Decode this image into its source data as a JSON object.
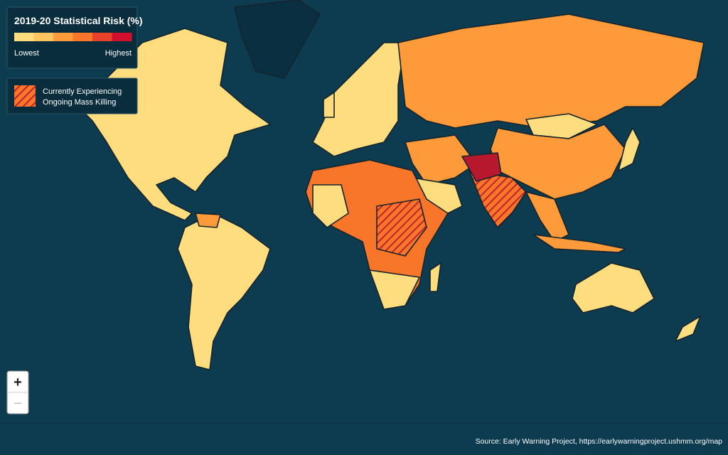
{
  "legend": {
    "title": "2019-20 Statistical Risk (%)",
    "scale_colors": [
      "#fedd7e",
      "#fec45f",
      "#fd9a3a",
      "#f7762a",
      "#e8432a",
      "#d0102c"
    ],
    "low_label": "Lowest",
    "high_label": "Highest"
  },
  "hatch_legend": {
    "lines": [
      "Currently Experiencing",
      "Ongoing Mass Killing"
    ]
  },
  "zoom": {
    "in": "+",
    "out": "−"
  },
  "source": "Source: Early Warning Project, https://earlywarningproject.ushmm.org/map"
}
